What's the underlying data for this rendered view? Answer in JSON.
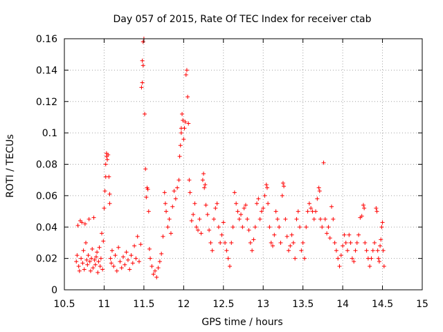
{
  "chart_data": {
    "type": "scatter",
    "title": "Day 057 of 2015, Rate Of TEC Index for receiver ctab",
    "xlabel": "GPS time / hours",
    "ylabel": "ROTI / TECUs",
    "xlim": [
      10.5,
      15
    ],
    "ylim": [
      0,
      0.16
    ],
    "x_ticks": [
      "10.5",
      "11",
      "11.5",
      "12",
      "12.5",
      "13",
      "13.5",
      "14",
      "14.5",
      "15"
    ],
    "x_tick_values": [
      10.5,
      11,
      11.5,
      12,
      12.5,
      13,
      13.5,
      14,
      14.5,
      15
    ],
    "y_ticks": [
      "0",
      "0.02",
      "0.04",
      "0.06",
      "0.08",
      "0.1",
      "0.12",
      "0.14",
      "0.16"
    ],
    "y_tick_values": [
      0,
      0.02,
      0.04,
      0.06,
      0.08,
      0.1,
      0.12,
      0.14,
      0.16
    ],
    "grid": true,
    "marker": "+",
    "color": "#ff0000",
    "series": [
      {
        "name": "ROTI",
        "points": [
          [
            10.65,
            0.018
          ],
          [
            10.66,
            0.022
          ],
          [
            10.67,
            0.041
          ],
          [
            10.68,
            0.015
          ],
          [
            10.69,
            0.012
          ],
          [
            10.7,
            0.044
          ],
          [
            10.71,
            0.02
          ],
          [
            10.72,
            0.043
          ],
          [
            10.73,
            0.017
          ],
          [
            10.74,
            0.025
          ],
          [
            10.75,
            0.013
          ],
          [
            10.76,
            0.042
          ],
          [
            10.77,
            0.03
          ],
          [
            10.78,
            0.019
          ],
          [
            10.79,
            0.016
          ],
          [
            10.8,
            0.022
          ],
          [
            10.81,
            0.045
          ],
          [
            10.82,
            0.018
          ],
          [
            10.83,
            0.012
          ],
          [
            10.84,
            0.02
          ],
          [
            10.85,
            0.026
          ],
          [
            10.86,
            0.014
          ],
          [
            10.87,
            0.046
          ],
          [
            10.88,
            0.019
          ],
          [
            10.89,
            0.016
          ],
          [
            10.9,
            0.021
          ],
          [
            10.91,
            0.024
          ],
          [
            10.92,
            0.011
          ],
          [
            10.93,
            0.018
          ],
          [
            10.94,
            0.027
          ],
          [
            10.95,
            0.015
          ],
          [
            10.96,
            0.02
          ],
          [
            10.97,
            0.036
          ],
          [
            10.98,
            0.013
          ],
          [
            10.99,
            0.031
          ],
          [
            11.0,
            0.052
          ],
          [
            11.01,
            0.063
          ],
          [
            11.02,
            0.072
          ],
          [
            11.02,
            0.08
          ],
          [
            11.03,
            0.085
          ],
          [
            11.03,
            0.087
          ],
          [
            11.04,
            0.083
          ],
          [
            11.05,
            0.086
          ],
          [
            11.06,
            0.072
          ],
          [
            11.07,
            0.061
          ],
          [
            11.07,
            0.055
          ],
          [
            11.08,
            0.02
          ],
          [
            11.09,
            0.017
          ],
          [
            11.1,
            0.025
          ],
          [
            11.12,
            0.015
          ],
          [
            11.14,
            0.022
          ],
          [
            11.16,
            0.012
          ],
          [
            11.18,
            0.027
          ],
          [
            11.2,
            0.018
          ],
          [
            11.22,
            0.014
          ],
          [
            11.24,
            0.021
          ],
          [
            11.26,
            0.016
          ],
          [
            11.28,
            0.024
          ],
          [
            11.3,
            0.019
          ],
          [
            11.32,
            0.013
          ],
          [
            11.34,
            0.022
          ],
          [
            11.36,
            0.017
          ],
          [
            11.38,
            0.028
          ],
          [
            11.4,
            0.02
          ],
          [
            11.42,
            0.034
          ],
          [
            11.44,
            0.018
          ],
          [
            11.46,
            0.029
          ],
          [
            11.47,
            0.129
          ],
          [
            11.48,
            0.132
          ],
          [
            11.48,
            0.146
          ],
          [
            11.49,
            0.143
          ],
          [
            11.49,
            0.158
          ],
          [
            11.5,
            0.16
          ],
          [
            11.51,
            0.112
          ],
          [
            11.52,
            0.077
          ],
          [
            11.53,
            0.059
          ],
          [
            11.54,
            0.065
          ],
          [
            11.55,
            0.064
          ],
          [
            11.56,
            0.05
          ],
          [
            11.57,
            0.026
          ],
          [
            11.58,
            0.02
          ],
          [
            11.6,
            0.015
          ],
          [
            11.62,
            0.01
          ],
          [
            11.64,
            0.012
          ],
          [
            11.66,
            0.008
          ],
          [
            11.68,
            0.014
          ],
          [
            11.7,
            0.018
          ],
          [
            11.72,
            0.023
          ],
          [
            11.74,
            0.034
          ],
          [
            11.76,
            0.062
          ],
          [
            11.77,
            0.055
          ],
          [
            11.78,
            0.05
          ],
          [
            11.8,
            0.04
          ],
          [
            11.82,
            0.045
          ],
          [
            11.84,
            0.036
          ],
          [
            11.86,
            0.053
          ],
          [
            11.88,
            0.063
          ],
          [
            11.9,
            0.058
          ],
          [
            11.92,
            0.065
          ],
          [
            11.94,
            0.07
          ],
          [
            11.95,
            0.085
          ],
          [
            11.96,
            0.092
          ],
          [
            11.97,
            0.1
          ],
          [
            11.97,
            0.103
          ],
          [
            11.98,
            0.112
          ],
          [
            11.99,
            0.108
          ],
          [
            12.0,
            0.096
          ],
          [
            12.01,
            0.103
          ],
          [
            12.02,
            0.107
          ],
          [
            12.03,
            0.137
          ],
          [
            12.04,
            0.14
          ],
          [
            12.05,
            0.123
          ],
          [
            12.06,
            0.106
          ],
          [
            12.07,
            0.07
          ],
          [
            12.08,
            0.062
          ],
          [
            12.1,
            0.044
          ],
          [
            12.12,
            0.048
          ],
          [
            12.14,
            0.055
          ],
          [
            12.16,
            0.04
          ],
          [
            12.18,
            0.038
          ],
          [
            12.2,
            0.045
          ],
          [
            12.22,
            0.036
          ],
          [
            12.24,
            0.07
          ],
          [
            12.25,
            0.074
          ],
          [
            12.26,
            0.065
          ],
          [
            12.27,
            0.067
          ],
          [
            12.28,
            0.054
          ],
          [
            12.3,
            0.048
          ],
          [
            12.32,
            0.038
          ],
          [
            12.34,
            0.03
          ],
          [
            12.36,
            0.025
          ],
          [
            12.38,
            0.045
          ],
          [
            12.4,
            0.052
          ],
          [
            12.42,
            0.055
          ],
          [
            12.44,
            0.04
          ],
          [
            12.46,
            0.03
          ],
          [
            12.48,
            0.035
          ],
          [
            12.5,
            0.043
          ],
          [
            12.52,
            0.03
          ],
          [
            12.54,
            0.025
          ],
          [
            12.56,
            0.02
          ],
          [
            12.58,
            0.015
          ],
          [
            12.6,
            0.03
          ],
          [
            12.62,
            0.04
          ],
          [
            12.64,
            0.062
          ],
          [
            12.66,
            0.055
          ],
          [
            12.68,
            0.05
          ],
          [
            12.7,
            0.045
          ],
          [
            12.72,
            0.048
          ],
          [
            12.74,
            0.04
          ],
          [
            12.76,
            0.052
          ],
          [
            12.78,
            0.054
          ],
          [
            12.8,
            0.045
          ],
          [
            12.82,
            0.038
          ],
          [
            12.84,
            0.03
          ],
          [
            12.86,
            0.025
          ],
          [
            12.88,
            0.032
          ],
          [
            12.9,
            0.04
          ],
          [
            12.92,
            0.055
          ],
          [
            12.94,
            0.058
          ],
          [
            12.96,
            0.045
          ],
          [
            12.98,
            0.05
          ],
          [
            13.0,
            0.052
          ],
          [
            13.02,
            0.06
          ],
          [
            13.04,
            0.067
          ],
          [
            13.05,
            0.065
          ],
          [
            13.06,
            0.055
          ],
          [
            13.08,
            0.04
          ],
          [
            13.1,
            0.03
          ],
          [
            13.12,
            0.028
          ],
          [
            13.14,
            0.035
          ],
          [
            13.16,
            0.05
          ],
          [
            13.18,
            0.045
          ],
          [
            13.2,
            0.04
          ],
          [
            13.22,
            0.03
          ],
          [
            13.24,
            0.06
          ],
          [
            13.25,
            0.068
          ],
          [
            13.26,
            0.066
          ],
          [
            13.28,
            0.045
          ],
          [
            13.3,
            0.034
          ],
          [
            13.32,
            0.025
          ],
          [
            13.34,
            0.028
          ],
          [
            13.36,
            0.035
          ],
          [
            13.38,
            0.03
          ],
          [
            13.4,
            0.02
          ],
          [
            13.42,
            0.045
          ],
          [
            13.44,
            0.05
          ],
          [
            13.46,
            0.04
          ],
          [
            13.48,
            0.025
          ],
          [
            13.5,
            0.03
          ],
          [
            13.52,
            0.02
          ],
          [
            13.54,
            0.04
          ],
          [
            13.56,
            0.05
          ],
          [
            13.58,
            0.055
          ],
          [
            13.6,
            0.052
          ],
          [
            13.62,
            0.05
          ],
          [
            13.64,
            0.045
          ],
          [
            13.66,
            0.05
          ],
          [
            13.68,
            0.058
          ],
          [
            13.7,
            0.065
          ],
          [
            13.71,
            0.063
          ],
          [
            13.72,
            0.045
          ],
          [
            13.74,
            0.04
          ],
          [
            13.76,
            0.081
          ],
          [
            13.78,
            0.045
          ],
          [
            13.8,
            0.036
          ],
          [
            13.82,
            0.04
          ],
          [
            13.84,
            0.033
          ],
          [
            13.86,
            0.053
          ],
          [
            13.88,
            0.045
          ],
          [
            13.9,
            0.03
          ],
          [
            13.92,
            0.025
          ],
          [
            13.94,
            0.02
          ],
          [
            13.96,
            0.015
          ],
          [
            13.98,
            0.022
          ],
          [
            14.0,
            0.028
          ],
          [
            14.02,
            0.035
          ],
          [
            14.04,
            0.03
          ],
          [
            14.06,
            0.025
          ],
          [
            14.08,
            0.035
          ],
          [
            14.1,
            0.03
          ],
          [
            14.12,
            0.02
          ],
          [
            14.14,
            0.018
          ],
          [
            14.16,
            0.025
          ],
          [
            14.18,
            0.03
          ],
          [
            14.2,
            0.035
          ],
          [
            14.22,
            0.046
          ],
          [
            14.24,
            0.047
          ],
          [
            14.26,
            0.054
          ],
          [
            14.27,
            0.052
          ],
          [
            14.28,
            0.03
          ],
          [
            14.3,
            0.025
          ],
          [
            14.32,
            0.02
          ],
          [
            14.34,
            0.015
          ],
          [
            14.36,
            0.02
          ],
          [
            14.38,
            0.025
          ],
          [
            14.4,
            0.03
          ],
          [
            14.42,
            0.052
          ],
          [
            14.43,
            0.05
          ],
          [
            14.44,
            0.025
          ],
          [
            14.45,
            0.02
          ],
          [
            14.46,
            0.018
          ],
          [
            14.47,
            0.028
          ],
          [
            14.48,
            0.032
          ],
          [
            14.49,
            0.04
          ],
          [
            14.5,
            0.043
          ],
          [
            14.51,
            0.025
          ],
          [
            14.52,
            0.015
          ]
        ]
      }
    ]
  }
}
